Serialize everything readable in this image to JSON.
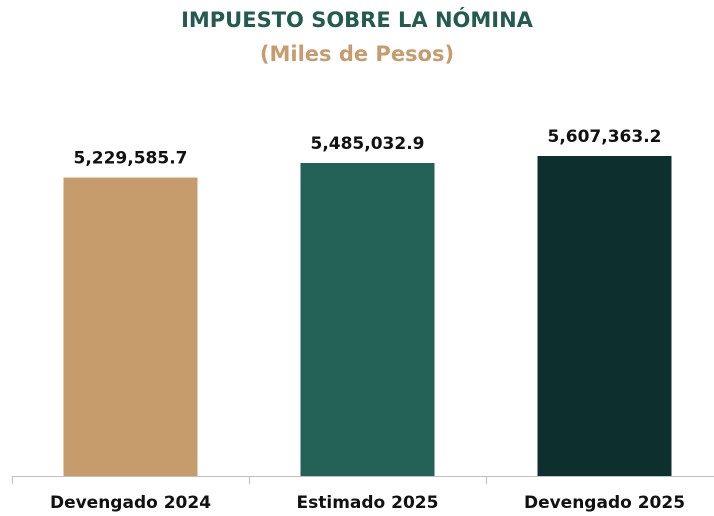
{
  "chart_data": {
    "type": "bar",
    "title": "IMPUESTO SOBRE LA NÓMINA",
    "subtitle": "(Miles de Pesos)",
    "categories": [
      "Devengado 2024",
      "Estimado 2025",
      "Devengado 2025"
    ],
    "values": [
      5229585.7,
      5485032.9,
      5607363.2
    ],
    "value_labels": [
      "5,229,585.7",
      "5,485,032.9",
      "5,607,363.2"
    ],
    "colors": [
      "#c69c6d",
      "#246257",
      "#0d302e"
    ]
  }
}
